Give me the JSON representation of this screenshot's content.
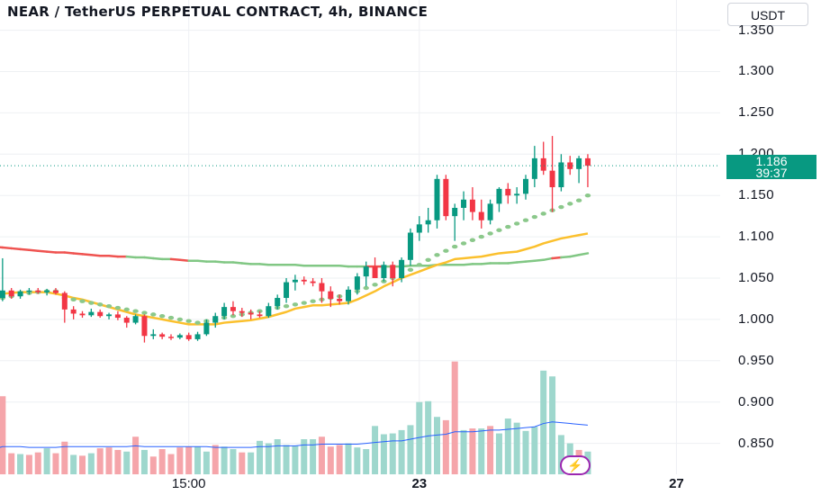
{
  "header": {
    "title": "NEAR / TetherUS PERPETUAL CONTRACT, 4h, BINANCE",
    "currency_button": "USDT"
  },
  "price_label": {
    "price": "1.186",
    "countdown": "39:37"
  },
  "colors": {
    "up": "#089981",
    "down": "#f23645",
    "up_volume": "#9ed7cd",
    "down_volume": "#f5a5aa",
    "ma_long_up": "#81c784",
    "ma_long_down": "#ef5350",
    "ma_short": "#fbc02d",
    "psar": "#8bc88b",
    "volume_ma": "#2962ff",
    "grid": "#eef0f3",
    "accent_bolt": "#9c27b0"
  },
  "bolt_icon": "lightning-icon",
  "chart_data": {
    "type": "candlestick",
    "symbol": "NEAR / TetherUS PERPETUAL CONTRACT",
    "timeframe": "4h",
    "exchange": "BINANCE",
    "ylim": [
      0.83,
      1.355
    ],
    "y_ticks": [
      "1.350",
      "1.300",
      "1.250",
      "1.200",
      "1.150",
      "1.100",
      "1.050",
      "1.000",
      "0.950",
      "0.900",
      "0.850"
    ],
    "x_ticks": [
      {
        "label": "15:00",
        "index": 22,
        "bold": false
      },
      {
        "label": "23",
        "index": 48,
        "bold": true
      },
      {
        "label": "27",
        "index": 77,
        "bold": true
      }
    ],
    "last_price": 1.186,
    "candles": [
      [
        1.032,
        1.036,
        1.024,
        1.026
      ],
      [
        1.026,
        1.074,
        1.022,
        1.035
      ],
      [
        1.035,
        1.038,
        1.025,
        1.028
      ],
      [
        1.028,
        1.036,
        1.025,
        1.034
      ],
      [
        1.034,
        1.038,
        1.03,
        1.035
      ],
      [
        1.035,
        1.038,
        1.031,
        1.033
      ],
      [
        1.033,
        1.037,
        1.029,
        1.035
      ],
      [
        1.035,
        1.038,
        1.03,
        1.032
      ],
      [
        1.032,
        1.034,
        0.996,
        1.012
      ],
      [
        1.012,
        1.016,
        1.0,
        1.007
      ],
      [
        1.007,
        1.01,
        1.002,
        1.005
      ],
      [
        1.005,
        1.013,
        1.003,
        1.009
      ],
      [
        1.009,
        1.012,
        1.002,
        1.004
      ],
      [
        1.004,
        1.008,
        1.0,
        1.006
      ],
      [
        1.006,
        1.01,
        0.999,
        1.002
      ],
      [
        1.002,
        1.004,
        0.99,
        0.996
      ],
      [
        0.996,
        1.006,
        0.994,
        1.004
      ],
      [
        1.004,
        1.006,
        0.972,
        0.98
      ],
      [
        0.98,
        0.988,
        0.976,
        0.982
      ],
      [
        0.982,
        0.984,
        0.976,
        0.979
      ],
      [
        0.979,
        0.982,
        0.975,
        0.978
      ],
      [
        0.978,
        0.983,
        0.976,
        0.981
      ],
      [
        0.981,
        0.984,
        0.974,
        0.976
      ],
      [
        0.976,
        0.985,
        0.974,
        0.982
      ],
      [
        0.982,
        1.0,
        0.98,
        0.996
      ],
      [
        0.996,
        1.008,
        0.99,
        1.004
      ],
      [
        1.004,
        1.02,
        1.0,
        1.015
      ],
      [
        1.015,
        1.022,
        1.005,
        1.01
      ],
      [
        1.01,
        1.014,
        1.003,
        1.008
      ],
      [
        1.008,
        1.012,
        1.0,
        1.006
      ],
      [
        1.006,
        1.01,
        1.002,
        1.004
      ],
      [
        1.004,
        1.02,
        1.002,
        1.016
      ],
      [
        1.016,
        1.03,
        1.012,
        1.026
      ],
      [
        1.026,
        1.05,
        1.02,
        1.045
      ],
      [
        1.045,
        1.054,
        1.035,
        1.048
      ],
      [
        1.048,
        1.052,
        1.042,
        1.046
      ],
      [
        1.046,
        1.05,
        1.04,
        1.044
      ],
      [
        1.044,
        1.05,
        1.02,
        1.034
      ],
      [
        1.034,
        1.04,
        1.015,
        1.025
      ],
      [
        1.025,
        1.03,
        1.018,
        1.022
      ],
      [
        1.022,
        1.04,
        1.018,
        1.036
      ],
      [
        1.036,
        1.056,
        1.03,
        1.052
      ],
      [
        1.052,
        1.07,
        1.04,
        1.064
      ],
      [
        1.064,
        1.075,
        1.055,
        1.05
      ],
      [
        1.05,
        1.07,
        1.046,
        1.066
      ],
      [
        1.066,
        1.07,
        1.04,
        1.05
      ],
      [
        1.05,
        1.075,
        1.045,
        1.072
      ],
      [
        1.072,
        1.11,
        1.065,
        1.105
      ],
      [
        1.105,
        1.125,
        1.095,
        1.115
      ],
      [
        1.115,
        1.135,
        1.105,
        1.12
      ],
      [
        1.12,
        1.175,
        1.11,
        1.17
      ],
      [
        1.17,
        1.175,
        1.12,
        1.125
      ],
      [
        1.125,
        1.14,
        1.095,
        1.135
      ],
      [
        1.135,
        1.155,
        1.12,
        1.145
      ],
      [
        1.145,
        1.16,
        1.12,
        1.13
      ],
      [
        1.13,
        1.145,
        1.11,
        1.12
      ],
      [
        1.12,
        1.145,
        1.115,
        1.14
      ],
      [
        1.14,
        1.16,
        1.13,
        1.158
      ],
      [
        1.158,
        1.165,
        1.14,
        1.15
      ],
      [
        1.15,
        1.16,
        1.14,
        1.152
      ],
      [
        1.152,
        1.175,
        1.145,
        1.17
      ],
      [
        1.17,
        1.21,
        1.16,
        1.195
      ],
      [
        1.195,
        1.215,
        1.175,
        1.18
      ],
      [
        1.18,
        1.222,
        1.13,
        1.16
      ],
      [
        1.16,
        1.2,
        1.155,
        1.19
      ],
      [
        1.19,
        1.198,
        1.175,
        1.182
      ],
      [
        1.182,
        1.198,
        1.165,
        1.195
      ],
      [
        1.195,
        1.2,
        1.16,
        1.186
      ]
    ],
    "volumes": [
      {
        "v": 0.862,
        "dir": "up"
      },
      {
        "v": 0.907,
        "dir": "down"
      },
      {
        "v": 0.838,
        "dir": "down"
      },
      {
        "v": 0.837,
        "dir": "up"
      },
      {
        "v": 0.836,
        "dir": "down"
      },
      {
        "v": 0.839,
        "dir": "down"
      },
      {
        "v": 0.844,
        "dir": "up"
      },
      {
        "v": 0.838,
        "dir": "down"
      },
      {
        "v": 0.852,
        "dir": "down"
      },
      {
        "v": 0.836,
        "dir": "up"
      },
      {
        "v": 0.835,
        "dir": "down"
      },
      {
        "v": 0.838,
        "dir": "up"
      },
      {
        "v": 0.844,
        "dir": "down"
      },
      {
        "v": 0.845,
        "dir": "down"
      },
      {
        "v": 0.842,
        "dir": "down"
      },
      {
        "v": 0.84,
        "dir": "up"
      },
      {
        "v": 0.858,
        "dir": "down"
      },
      {
        "v": 0.842,
        "dir": "up"
      },
      {
        "v": 0.834,
        "dir": "down"
      },
      {
        "v": 0.843,
        "dir": "down"
      },
      {
        "v": 0.837,
        "dir": "down"
      },
      {
        "v": 0.845,
        "dir": "down"
      },
      {
        "v": 0.846,
        "dir": "down"
      },
      {
        "v": 0.846,
        "dir": "up"
      },
      {
        "v": 0.84,
        "dir": "up"
      },
      {
        "v": 0.848,
        "dir": "down"
      },
      {
        "v": 0.846,
        "dir": "up"
      },
      {
        "v": 0.843,
        "dir": "up"
      },
      {
        "v": 0.839,
        "dir": "down"
      },
      {
        "v": 0.839,
        "dir": "up"
      },
      {
        "v": 0.853,
        "dir": "up"
      },
      {
        "v": 0.85,
        "dir": "up"
      },
      {
        "v": 0.855,
        "dir": "up"
      },
      {
        "v": 0.848,
        "dir": "up"
      },
      {
        "v": 0.847,
        "dir": "up"
      },
      {
        "v": 0.855,
        "dir": "up"
      },
      {
        "v": 0.855,
        "dir": "up"
      },
      {
        "v": 0.858,
        "dir": "down"
      },
      {
        "v": 0.846,
        "dir": "down"
      },
      {
        "v": 0.848,
        "dir": "down"
      },
      {
        "v": 0.85,
        "dir": "up"
      },
      {
        "v": 0.845,
        "dir": "up"
      },
      {
        "v": 0.843,
        "dir": "up"
      },
      {
        "v": 0.871,
        "dir": "up"
      },
      {
        "v": 0.861,
        "dir": "up"
      },
      {
        "v": 0.862,
        "dir": "up"
      },
      {
        "v": 0.866,
        "dir": "up"
      },
      {
        "v": 0.872,
        "dir": "up"
      },
      {
        "v": 0.9,
        "dir": "up"
      },
      {
        "v": 0.901,
        "dir": "up"
      },
      {
        "v": 0.882,
        "dir": "up"
      },
      {
        "v": 0.878,
        "dir": "down"
      },
      {
        "v": 0.949,
        "dir": "down"
      },
      {
        "v": 0.866,
        "dir": "up"
      },
      {
        "v": 0.868,
        "dir": "down"
      },
      {
        "v": 0.868,
        "dir": "up"
      },
      {
        "v": 0.871,
        "dir": "down"
      },
      {
        "v": 0.862,
        "dir": "up"
      },
      {
        "v": 0.88,
        "dir": "up"
      },
      {
        "v": 0.875,
        "dir": "up"
      },
      {
        "v": 0.865,
        "dir": "up"
      },
      {
        "v": 0.87,
        "dir": "up"
      },
      {
        "v": 0.938,
        "dir": "up"
      },
      {
        "v": 0.931,
        "dir": "up"
      },
      {
        "v": 0.86,
        "dir": "up"
      },
      {
        "v": 0.85,
        "dir": "up"
      },
      {
        "v": 0.842,
        "dir": "down"
      },
      {
        "v": 0.84,
        "dir": "up"
      }
    ],
    "ma_long": [
      1.088,
      1.087,
      1.086,
      1.085,
      1.084,
      1.083,
      1.082,
      1.081,
      1.081,
      1.08,
      1.079,
      1.078,
      1.077,
      1.077,
      1.076,
      1.076,
      1.075,
      1.075,
      1.074,
      1.073,
      1.073,
      1.072,
      1.071,
      1.071,
      1.07,
      1.07,
      1.069,
      1.069,
      1.068,
      1.067,
      1.067,
      1.066,
      1.066,
      1.066,
      1.066,
      1.065,
      1.065,
      1.065,
      1.065,
      1.065,
      1.064,
      1.064,
      1.064,
      1.064,
      1.064,
      1.064,
      1.064,
      1.065,
      1.065,
      1.065,
      1.066,
      1.066,
      1.066,
      1.066,
      1.067,
      1.067,
      1.068,
      1.068,
      1.068,
      1.069,
      1.07,
      1.071,
      1.072,
      1.074,
      1.075,
      1.076,
      1.078,
      1.08
    ],
    "ma_long_down_ranges": [
      [
        0,
        15
      ],
      [
        20,
        22
      ],
      [
        42,
        44
      ],
      [
        63,
        64
      ]
    ],
    "ma_short": [
      1.03,
      1.031,
      1.032,
      1.033,
      1.033,
      1.033,
      1.033,
      1.031,
      1.029,
      1.026,
      1.024,
      1.021,
      1.018,
      1.015,
      1.012,
      1.009,
      1.006,
      1.004,
      1.002,
      1.0,
      0.998,
      0.996,
      0.994,
      0.994,
      0.994,
      0.994,
      0.996,
      0.997,
      0.998,
      0.999,
      1.001,
      1.003,
      1.006,
      1.009,
      1.013,
      1.015,
      1.017,
      1.017,
      1.018,
      1.019,
      1.02,
      1.024,
      1.029,
      1.034,
      1.04,
      1.045,
      1.05,
      1.054,
      1.058,
      1.062,
      1.066,
      1.069,
      1.073,
      1.074,
      1.075,
      1.076,
      1.078,
      1.08,
      1.081,
      1.082,
      1.085,
      1.088,
      1.092,
      1.095,
      1.098,
      1.1,
      1.102,
      1.104
    ],
    "psar": [
      1.024,
      1.026,
      1.028,
      1.03,
      1.032,
      1.033,
      1.034,
      1.034,
      1.026,
      1.024,
      1.022,
      1.02,
      1.018,
      1.016,
      1.014,
      1.012,
      1.01,
      1.008,
      1.006,
      1.004,
      1.002,
      1.0,
      0.998,
      0.996,
      0.998,
      1.0,
      1.002,
      1.004,
      1.006,
      1.008,
      1.01,
      1.012,
      1.014,
      1.016,
      1.018,
      1.02,
      1.022,
      1.024,
      1.026,
      1.028,
      1.03,
      1.034,
      1.038,
      1.042,
      1.046,
      1.05,
      1.055,
      1.06,
      1.066,
      1.072,
      1.078,
      1.083,
      1.088,
      1.092,
      1.096,
      1.1,
      1.104,
      1.108,
      1.112,
      1.116,
      1.12,
      1.124,
      1.128,
      1.132,
      1.136,
      1.14,
      1.144,
      1.15
    ],
    "volume_ma": [
      0.843,
      0.846,
      0.846,
      0.846,
      0.845,
      0.845,
      0.845,
      0.845,
      0.846,
      0.846,
      0.846,
      0.846,
      0.846,
      0.846,
      0.846,
      0.846,
      0.847,
      0.846,
      0.846,
      0.846,
      0.846,
      0.846,
      0.846,
      0.846,
      0.846,
      0.845,
      0.845,
      0.845,
      0.845,
      0.845,
      0.846,
      0.846,
      0.847,
      0.847,
      0.847,
      0.848,
      0.848,
      0.849,
      0.849,
      0.849,
      0.849,
      0.849,
      0.85,
      0.851,
      0.852,
      0.853,
      0.853,
      0.855,
      0.857,
      0.859,
      0.86,
      0.861,
      0.864,
      0.864,
      0.864,
      0.865,
      0.866,
      0.866,
      0.867,
      0.868,
      0.869,
      0.87,
      0.874,
      0.876,
      0.875,
      0.874,
      0.873,
      0.872
    ]
  }
}
